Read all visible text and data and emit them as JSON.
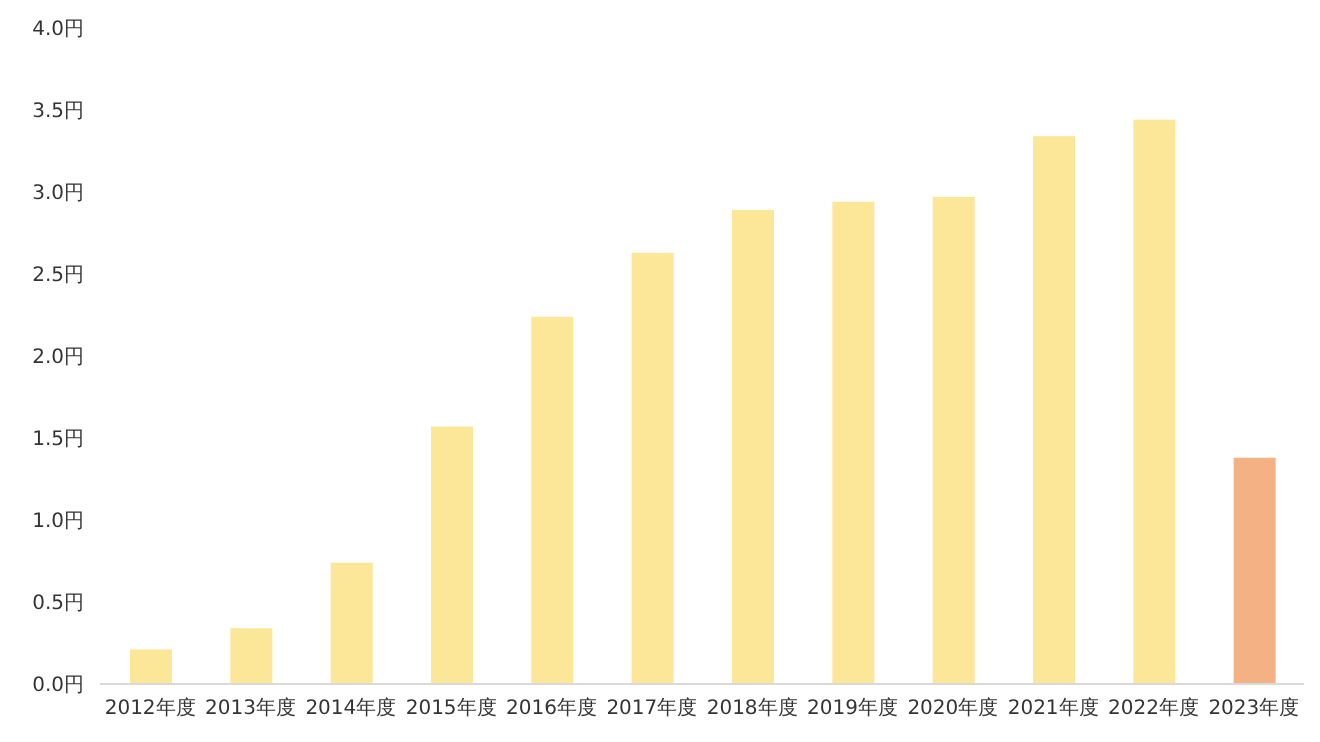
{
  "chart_data": {
    "type": "bar",
    "categories": [
      "2012年度",
      "2013年度",
      "2014年度",
      "2015年度",
      "2016年度",
      "2017年度",
      "2018年度",
      "2019年度",
      "2020年度",
      "2021年度",
      "2022年度",
      "2023年度"
    ],
    "values": [
      0.21,
      0.34,
      0.74,
      1.57,
      2.24,
      2.63,
      2.89,
      2.94,
      2.97,
      3.34,
      3.44,
      1.38
    ],
    "colors": [
      "#fce698",
      "#fce698",
      "#fce698",
      "#fce698",
      "#fce698",
      "#fce698",
      "#fce698",
      "#fce698",
      "#fce698",
      "#fce698",
      "#fce698",
      "#f4b183"
    ],
    "ylim": [
      0,
      4
    ],
    "yticks": [
      {
        "value": 0,
        "label": "0.0円"
      },
      {
        "value": 0.5,
        "label": "0.5円"
      },
      {
        "value": 1,
        "label": "1.0円"
      },
      {
        "value": 1.5,
        "label": "1.5円"
      },
      {
        "value": 2,
        "label": "2.0円"
      },
      {
        "value": 2.5,
        "label": "2.5円"
      },
      {
        "value": 3,
        "label": "3.0円"
      },
      {
        "value": 3.5,
        "label": "3.5円"
      },
      {
        "value": 4,
        "label": "4.0円"
      }
    ],
    "grid": false,
    "legend": false
  }
}
